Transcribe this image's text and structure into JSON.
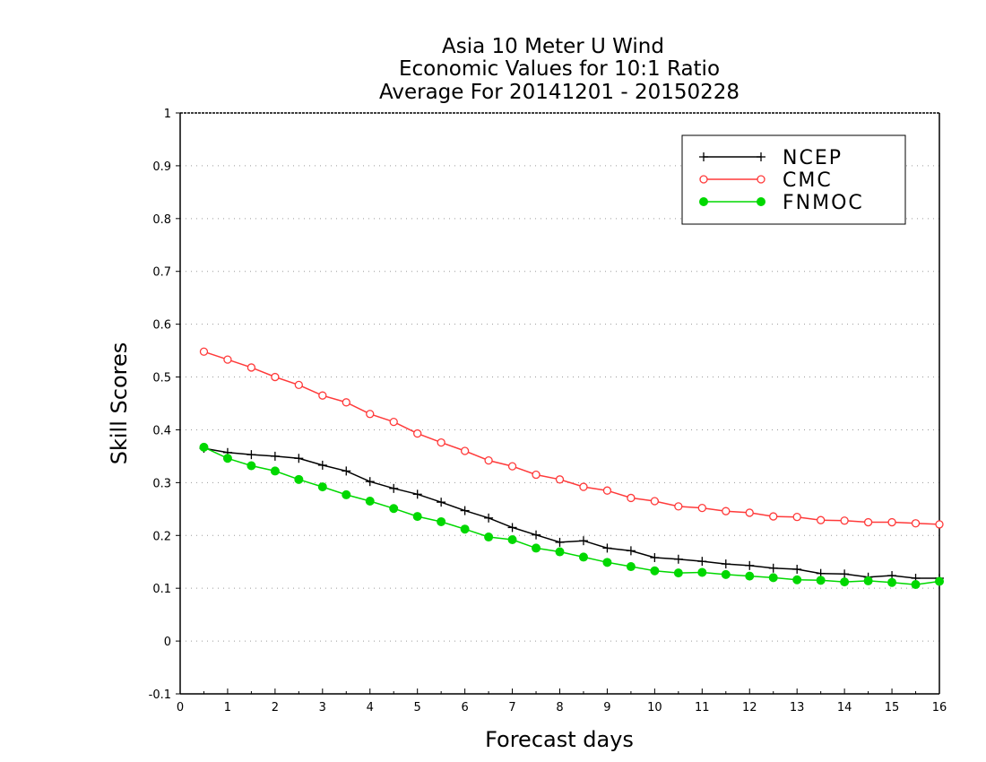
{
  "chart_data": {
    "type": "line",
    "title": [
      "Asia 10 Meter U Wind",
      "Economic Values for 10:1 Ratio",
      "Average For 20141201 - 20150228"
    ],
    "xlabel": "Forecast days",
    "ylabel": "Skill Scores",
    "xlim": [
      0,
      16
    ],
    "ylim": [
      -0.1,
      1
    ],
    "xticks": [
      "0",
      "1",
      "2",
      "3",
      "4",
      "5",
      "6",
      "7",
      "8",
      "9",
      "10",
      "11",
      "12",
      "13",
      "14",
      "15",
      "16"
    ],
    "yticks": [
      "-0.1",
      "0",
      "0.1",
      "0.2",
      "0.3",
      "0.4",
      "0.5",
      "0.6",
      "0.7",
      "0.8",
      "0.9",
      "1"
    ],
    "grid": true,
    "legend_position": "top-right",
    "x": [
      0.5,
      1,
      1.5,
      2,
      2.5,
      3,
      3.5,
      4,
      4.5,
      5,
      5.5,
      6,
      6.5,
      7,
      7.5,
      8,
      8.5,
      9,
      9.5,
      10,
      10.5,
      11,
      11.5,
      12,
      12.5,
      13,
      13.5,
      14,
      14.5,
      15,
      15.5,
      16
    ],
    "series": [
      {
        "name": "NCEP",
        "color": "#000000",
        "marker": "plus",
        "values": [
          0.365,
          0.357,
          0.353,
          0.35,
          0.346,
          0.333,
          0.322,
          0.302,
          0.289,
          0.278,
          0.263,
          0.247,
          0.233,
          0.215,
          0.201,
          0.187,
          0.19,
          0.176,
          0.171,
          0.158,
          0.155,
          0.151,
          0.146,
          0.143,
          0.138,
          0.136,
          0.128,
          0.127,
          0.121,
          0.124,
          0.119,
          0.119
        ]
      },
      {
        "name": "CMC",
        "color": "#ff3a3a",
        "marker": "open-circle",
        "values": [
          0.548,
          0.533,
          0.518,
          0.5,
          0.485,
          0.465,
          0.452,
          0.43,
          0.415,
          0.393,
          0.376,
          0.36,
          0.342,
          0.331,
          0.315,
          0.306,
          0.292,
          0.285,
          0.271,
          0.265,
          0.255,
          0.252,
          0.246,
          0.243,
          0.236,
          0.235,
          0.229,
          0.228,
          0.225,
          0.225,
          0.223,
          0.221
        ]
      },
      {
        "name": "FNMOC",
        "color": "#00d800",
        "marker": "filled-circle",
        "values": [
          0.367,
          0.346,
          0.332,
          0.322,
          0.306,
          0.292,
          0.277,
          0.265,
          0.251,
          0.236,
          0.226,
          0.212,
          0.197,
          0.192,
          0.176,
          0.169,
          0.159,
          0.149,
          0.141,
          0.133,
          0.129,
          0.13,
          0.126,
          0.123,
          0.12,
          0.116,
          0.115,
          0.112,
          0.114,
          0.111,
          0.107,
          0.113
        ]
      }
    ]
  }
}
